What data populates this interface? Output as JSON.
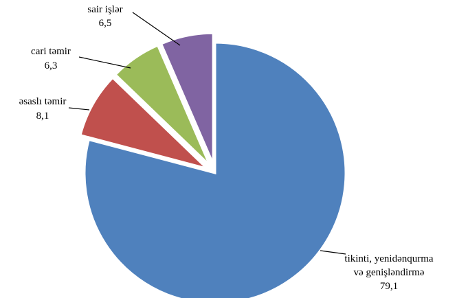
{
  "chart_data": {
    "type": "pie",
    "title": "",
    "slices": [
      {
        "label_lines": [
          "tikinti, yenidənqurma",
          "və genişləndirmə"
        ],
        "value": 79.1,
        "value_label": "79,1",
        "color": "#4F81BD",
        "exploded": false
      },
      {
        "label_lines": [
          "əsaslı təmir"
        ],
        "value": 8.1,
        "value_label": "8,1",
        "color": "#C0504D",
        "exploded": true
      },
      {
        "label_lines": [
          "cari təmir"
        ],
        "value": 6.3,
        "value_label": "6,3",
        "color": "#9BBB59",
        "exploded": true
      },
      {
        "label_lines": [
          "sair işlər"
        ],
        "value": 6.5,
        "value_label": "6,5",
        "color": "#8064A2",
        "exploded": true
      }
    ],
    "start_angle_deg": 0,
    "direction": "clockwise",
    "legend": "none",
    "data_labels": "outside-with-leader-lines"
  }
}
